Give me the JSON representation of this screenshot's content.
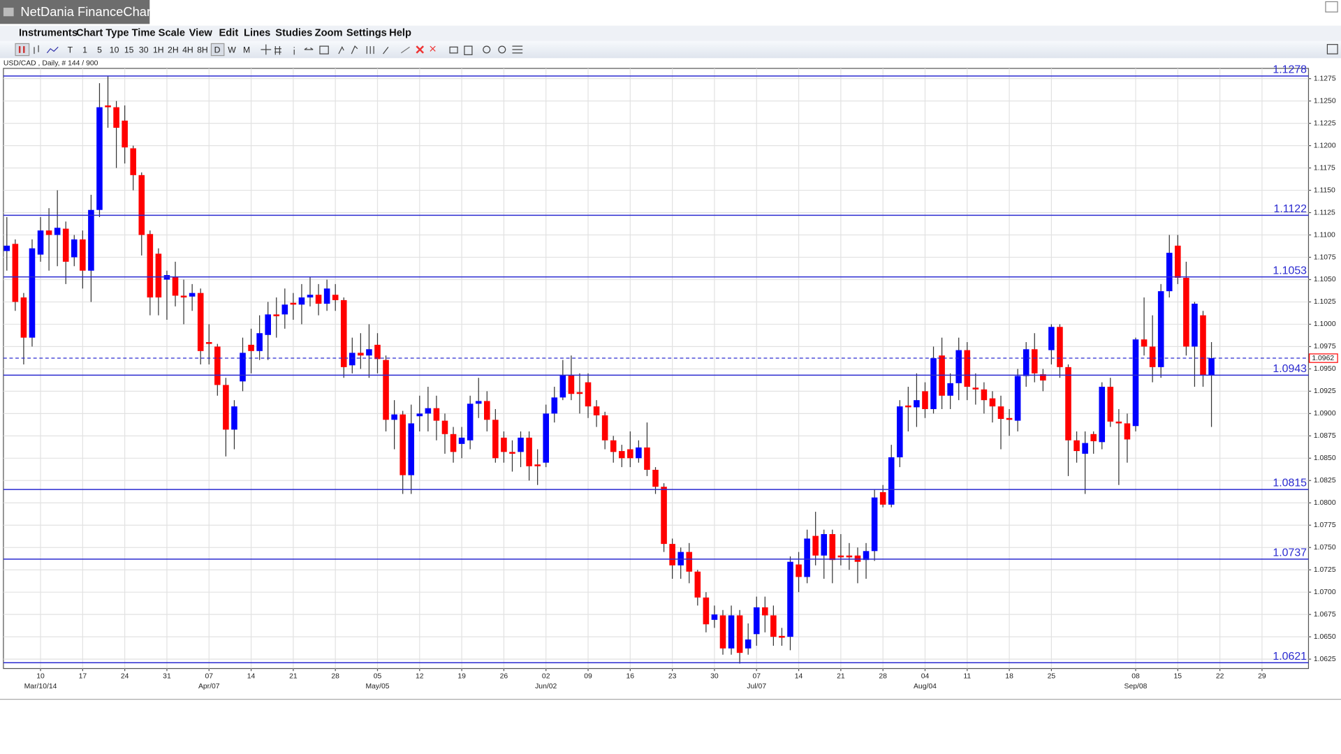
{
  "window": {
    "title": "NetDania FinanceChart",
    "menu": [
      "Instruments",
      "Chart Type",
      "Time Scale",
      "View",
      "Edit",
      "Lines",
      "Studies",
      "Zoom",
      "Settings",
      "Help"
    ],
    "timeframes": [
      "T",
      "1",
      "5",
      "10",
      "15",
      "30",
      "1H",
      "2H",
      "4H",
      "8H",
      "D",
      "W",
      "M"
    ]
  },
  "chart_data": {
    "type": "candlestick",
    "instrument": "USD/CAD , Daily, # 144 / 900",
    "up_color": "#0000ff",
    "down_color": "#ff0000",
    "level_color": "#2a2ad0",
    "grid": true,
    "ylim": [
      1.06145,
      1.12865
    ],
    "yticks": [
      1.0625,
      {
        "value": 1.065,
        "label": "1.0650"
      },
      1.0675,
      {
        "value": 1.07,
        "label": "1.0700"
      },
      1.0725,
      {
        "value": 1.075,
        "label": "1.0750"
      },
      1.0775,
      {
        "value": 1.08,
        "label": "1.0800"
      },
      1.0825,
      {
        "value": 1.085,
        "label": "1.0850"
      },
      1.0875,
      {
        "value": 1.09,
        "label": "1.0900"
      },
      1.0925,
      {
        "value": 1.095,
        "label": "1.0950"
      },
      1.0975,
      {
        "value": 1.1,
        "label": "1.1000"
      },
      1.1025,
      {
        "value": 1.105,
        "label": "1.1050"
      },
      1.1075,
      {
        "value": 1.11,
        "label": "1.1100"
      },
      1.1125,
      {
        "value": 1.115,
        "label": "1.1150"
      },
      1.1175,
      {
        "value": 1.12,
        "label": "1.1200"
      },
      1.1225,
      {
        "value": 1.125,
        "label": "1.1250"
      },
      1.1275
    ],
    "levels": [
      1.1278,
      1.1122,
      1.1053,
      1.0943,
      1.0815,
      1.0737,
      1.0621
    ],
    "last_price": 1.0962,
    "categories": [
      null,
      null,
      null,
      null,
      "10",
      null,
      null,
      null,
      null,
      "17",
      null,
      null,
      null,
      null,
      "24",
      null,
      null,
      null,
      null,
      "31",
      null,
      null,
      null,
      null,
      "07",
      null,
      null,
      null,
      null,
      "14",
      null,
      null,
      null,
      null,
      "21",
      null,
      null,
      null,
      null,
      "28",
      null,
      null,
      null,
      null,
      "05",
      null,
      null,
      null,
      null,
      "12",
      null,
      null,
      null,
      null,
      "19",
      null,
      null,
      null,
      null,
      "26",
      null,
      null,
      null,
      null,
      "02",
      null,
      null,
      null,
      null,
      "09",
      null,
      null,
      null,
      null,
      "16",
      null,
      null,
      null,
      null,
      "23",
      null,
      null,
      null,
      null,
      "30",
      null,
      null,
      null,
      null,
      "07",
      null,
      null,
      null,
      null,
      "14",
      null,
      null,
      null,
      null,
      "21",
      null,
      null,
      null,
      null,
      "28",
      null,
      null,
      null,
      null,
      "04",
      null,
      null,
      null,
      null,
      "11",
      null,
      null,
      null,
      null,
      "18",
      null,
      null,
      null,
      null,
      "25",
      null,
      null,
      null,
      null,
      null,
      null,
      null,
      null,
      null,
      "08",
      null,
      null,
      null,
      null,
      "15",
      null,
      null,
      null,
      null,
      "22",
      null,
      null,
      null,
      null,
      "29"
    ],
    "category_sublabels": [
      null,
      null,
      null,
      null,
      "Mar/10/14",
      null,
      null,
      null,
      null,
      null,
      null,
      null,
      null,
      null,
      null,
      null,
      null,
      null,
      null,
      null,
      null,
      null,
      null,
      null,
      "Apr/07",
      null,
      null,
      null,
      null,
      null,
      null,
      null,
      null,
      null,
      null,
      null,
      null,
      null,
      null,
      null,
      null,
      null,
      null,
      null,
      "May/05",
      null,
      null,
      null,
      null,
      null,
      null,
      null,
      null,
      null,
      null,
      null,
      null,
      null,
      null,
      null,
      null,
      null,
      null,
      null,
      "Jun/02",
      null,
      null,
      null,
      null,
      null,
      null,
      null,
      null,
      null,
      null,
      null,
      null,
      null,
      null,
      null,
      null,
      null,
      null,
      null,
      null,
      null,
      null,
      null,
      null,
      "Jul/07",
      null,
      null,
      null,
      null,
      null,
      null,
      null,
      null,
      null,
      null,
      null,
      null,
      null,
      null,
      null,
      null,
      null,
      null,
      null,
      "Aug/04",
      null,
      null,
      null,
      null,
      null,
      null,
      null,
      null,
      null,
      null,
      null,
      null,
      null,
      null,
      null,
      null,
      null,
      null,
      null,
      null,
      null,
      null,
      null,
      null,
      "Sep/08",
      null,
      null,
      null,
      null,
      null,
      null,
      null,
      null,
      null,
      null,
      null,
      null,
      null,
      null,
      null
    ],
    "open": [
      1.1082,
      1.109,
      1.103,
      1.0985,
      1.1078,
      1.1105,
      1.11,
      1.1107,
      1.1075,
      1.1095,
      1.106,
      1.1128,
      1.1245,
      1.1243,
      1.1228,
      1.1197,
      1.1167,
      1.1101,
      1.1079,
      1.105,
      1.1053,
      1.1032,
      1.1031,
      1.1035,
      1.098,
      1.0975,
      1.0932,
      1.0882,
      1.0936,
      1.0977,
      1.097,
      1.0988,
      1.1011,
      1.1011,
      1.1024,
      1.1022,
      1.103,
      1.1033,
      1.1023,
      1.1033,
      1.1027,
      1.0954,
      1.0968,
      1.0965,
      1.0977,
      1.096,
      1.0893,
      1.0899,
      1.0831,
      1.0897,
      1.09,
      1.0906,
      1.0892,
      1.0877,
      1.0866,
      1.087,
      1.0911,
      1.0914,
      1.0893,
      1.0873,
      1.0857,
      1.0857,
      1.0873,
      1.0843,
      1.0845,
      1.09,
      1.0918,
      1.0943,
      1.0924,
      1.0935,
      1.0908,
      1.0898,
      1.087,
      1.0858,
      1.086,
      1.085,
      1.0862,
      1.0837,
      1.0818,
      1.0754,
      1.073,
      1.0745,
      1.0723,
      1.0694,
      1.0669,
      1.0674,
      1.0637,
      1.0674,
      1.0637,
      1.0653,
      1.0683,
      1.0674,
      1.0651,
      1.065,
      1.0731,
      1.0717,
      1.0763,
      1.0741,
      1.0765,
      1.0741,
      1.0741,
      1.0741,
      1.0736,
      1.0746,
      1.0812,
      1.0798,
      1.0851,
      1.0909,
      1.0907,
      1.0925,
      1.0905,
      1.0965,
      1.092,
      1.0934,
      1.0971,
      1.0929,
      1.0927,
      1.0917,
      1.0908,
      1.0895,
      1.0892,
      1.0942,
      1.0972,
      1.0944,
      1.0971,
      1.0997,
      1.0952,
      1.087,
      1.0855,
      1.0877,
      1.0868,
      1.093,
      1.0891,
      1.0889,
      1.0886,
      1.0983,
      1.0975,
      1.0952,
      1.1037,
      1.1088,
      1.1052,
      1.0975,
      1.101,
      1.0943,
      null,
      null,
      null,
      null,
      null,
      null
    ],
    "high": [
      1.112,
      1.1095,
      1.1035,
      1.1095,
      1.112,
      1.113,
      1.115,
      1.1115,
      1.11,
      1.1105,
      1.1145,
      1.127,
      1.1278,
      1.125,
      1.1245,
      1.12,
      1.117,
      1.1105,
      1.1085,
      1.106,
      1.107,
      1.105,
      1.1045,
      1.104,
      1.1,
      1.0978,
      1.094,
      1.0915,
      1.0985,
      1.0995,
      1.101,
      1.1025,
      1.103,
      1.104,
      1.1035,
      1.1045,
      1.1053,
      1.1045,
      1.105,
      1.1045,
      1.103,
      1.0985,
      1.099,
      1.1,
      1.099,
      1.0965,
      1.0915,
      1.0903,
      1.091,
      1.092,
      1.093,
      1.092,
      1.09,
      1.0885,
      1.0885,
      1.092,
      1.094,
      1.0925,
      1.0905,
      1.088,
      1.087,
      1.088,
      1.088,
      1.086,
      1.091,
      1.093,
      1.096,
      1.0965,
      1.0945,
      1.0945,
      1.0915,
      1.0902,
      1.0875,
      1.0865,
      1.088,
      1.087,
      1.089,
      1.084,
      1.0822,
      1.076,
      1.075,
      1.0755,
      1.0725,
      1.07,
      1.0685,
      1.068,
      1.0685,
      1.068,
      1.0665,
      1.0695,
      1.0695,
      1.0685,
      1.066,
      1.074,
      1.0745,
      1.077,
      1.079,
      1.077,
      1.077,
      1.0765,
      1.0755,
      1.075,
      1.0755,
      1.0815,
      1.082,
      1.0865,
      1.0915,
      1.093,
      1.0945,
      1.0935,
      1.0975,
      1.0985,
      1.0945,
      1.0985,
      1.098,
      1.0945,
      1.0935,
      1.0925,
      1.092,
      1.0905,
      1.095,
      1.098,
      1.099,
      1.095,
      1.1,
      1.1,
      1.0955,
      1.088,
      1.088,
      1.088,
      1.0935,
      1.094,
      1.0905,
      1.09,
      1.0985,
      1.103,
      1.101,
      1.1045,
      1.11,
      1.11,
      1.107,
      1.1025,
      1.1015,
      1.098,
      null,
      null,
      null,
      null,
      null,
      null
    ],
    "low": [
      1.106,
      1.1015,
      1.0955,
      1.0975,
      1.107,
      1.106,
      1.1065,
      1.1045,
      1.1065,
      1.104,
      1.1025,
      1.112,
      1.122,
      1.1175,
      1.118,
      1.115,
      1.1077,
      1.101,
      1.101,
      1.1005,
      1.102,
      1.1,
      1.1015,
      1.0955,
      1.0955,
      1.092,
      1.0852,
      1.086,
      1.0925,
      1.0945,
      1.096,
      1.096,
      1.0985,
      1.0995,
      1.1005,
      1.1,
      1.102,
      1.101,
      1.1015,
      1.1015,
      1.094,
      1.0945,
      1.095,
      1.094,
      1.0945,
      1.088,
      1.086,
      1.081,
      1.081,
      1.088,
      1.088,
      1.087,
      1.0855,
      1.0845,
      1.085,
      1.086,
      1.0895,
      1.088,
      1.0845,
      1.0845,
      1.0835,
      1.084,
      1.0825,
      1.082,
      1.084,
      1.089,
      1.0915,
      1.0915,
      1.09,
      1.0895,
      1.0885,
      1.086,
      1.0845,
      1.084,
      1.084,
      1.0845,
      1.083,
      1.081,
      1.0745,
      1.0715,
      1.0715,
      1.071,
      1.0685,
      1.0655,
      1.066,
      1.063,
      1.063,
      1.062,
      1.063,
      1.064,
      1.0655,
      1.064,
      1.064,
      1.0635,
      1.07,
      1.071,
      1.073,
      1.0715,
      1.071,
      1.073,
      1.0725,
      1.071,
      1.0715,
      1.0735,
      1.0795,
      1.0795,
      1.084,
      1.088,
      1.0885,
      1.0895,
      1.09,
      1.0905,
      1.0905,
      1.0915,
      1.0915,
      1.091,
      1.09,
      1.089,
      1.086,
      1.0875,
      1.088,
      1.093,
      1.0935,
      1.0925,
      1.0955,
      1.094,
      1.083,
      1.0845,
      1.081,
      1.0855,
      1.086,
      1.0885,
      1.082,
      1.0845,
      1.088,
      1.0965,
      1.0935,
      1.094,
      1.103,
      1.1045,
      1.0965,
      1.093,
      1.093,
      1.0885,
      null,
      null,
      null,
      null,
      null,
      null
    ],
    "close": [
      1.1088,
      1.1025,
      1.0985,
      1.1085,
      1.1105,
      1.11,
      1.1108,
      1.107,
      1.1095,
      1.106,
      1.1128,
      1.1243,
      1.1243,
      1.122,
      1.1198,
      1.1167,
      1.11,
      1.103,
      1.103,
      1.1055,
      1.1032,
      1.103,
      1.1035,
      1.097,
      1.0978,
      1.0932,
      1.0882,
      1.0908,
      1.0968,
      1.097,
      1.099,
      1.1011,
      1.1009,
      1.1022,
      1.1022,
      1.103,
      1.1033,
      1.1023,
      1.104,
      1.1027,
      1.0952,
      1.0968,
      1.0965,
      1.0972,
      1.0961,
      1.0893,
      1.0899,
      1.0831,
      1.0889,
      1.09,
      1.0906,
      1.0892,
      1.0877,
      1.0857,
      1.0873,
      1.0911,
      1.0914,
      1.0893,
      1.085,
      1.0857,
      1.0855,
      1.0873,
      1.0841,
      1.0841,
      1.09,
      1.0918,
      1.0943,
      1.0922,
      1.0922,
      1.0908,
      1.0898,
      1.087,
      1.0857,
      1.085,
      1.085,
      1.0862,
      1.0837,
      1.0818,
      1.0754,
      1.073,
      1.0745,
      1.0723,
      1.0694,
      1.0664,
      1.0675,
      1.0637,
      1.0674,
      1.0632,
      1.0647,
      1.0683,
      1.0674,
      1.065,
      1.0649,
      1.0734,
      1.0717,
      1.076,
      1.0741,
      1.0765,
      1.0736,
      1.0739,
      1.0739,
      1.0734,
      1.0746,
      1.0806,
      1.0798,
      1.0851,
      1.0908,
      1.0907,
      1.0915,
      1.0905,
      1.0962,
      1.092,
      1.0934,
      1.0971,
      1.093,
      1.0927,
      1.0915,
      1.0908,
      1.0894,
      1.0893,
      1.0942,
      1.0972,
      1.0945,
      1.0937,
      1.0997,
      1.0952,
      1.087,
      1.0858,
      1.0867,
      1.0869,
      1.093,
      1.0891,
      1.0889,
      1.0871,
      1.0983,
      1.0975,
      1.0952,
      1.1037,
      1.108,
      1.1052,
      1.0975,
      1.1023,
      1.0943,
      1.0962,
      null,
      null,
      null,
      null,
      null,
      null
    ]
  }
}
